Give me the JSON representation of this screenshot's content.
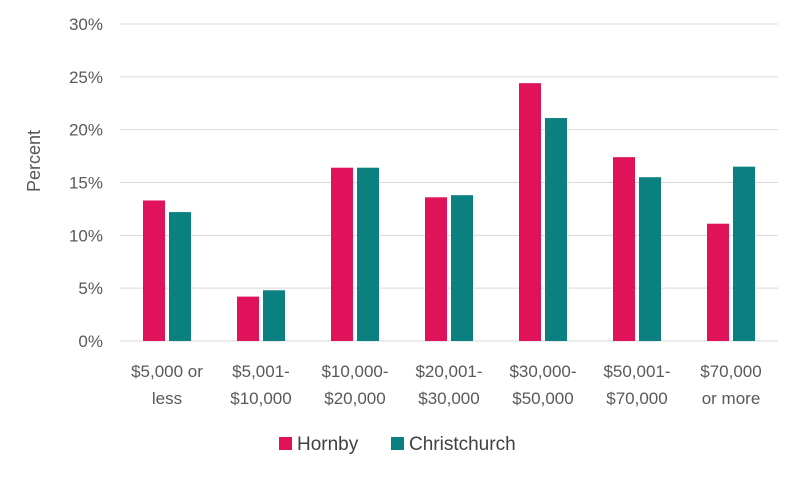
{
  "chart_data": {
    "type": "bar",
    "title": "",
    "xlabel": "",
    "ylabel": "Percent",
    "ylim": [
      0,
      30
    ],
    "yticks": [
      "0%",
      "5%",
      "10%",
      "15%",
      "20%",
      "25%",
      "30%"
    ],
    "grid": true,
    "legend_position": "bottom",
    "categories": [
      [
        "$5,000 or",
        "less"
      ],
      [
        "$5,001-",
        "$10,000"
      ],
      [
        "$10,000-",
        "$20,000"
      ],
      [
        "$20,001-",
        "$30,000"
      ],
      [
        "$30,000-",
        "$50,000"
      ],
      [
        "$50,001-",
        "$70,000"
      ],
      [
        "$70,000",
        "or more"
      ]
    ],
    "series": [
      {
        "name": "Hornby",
        "color": "#e0135a",
        "values": [
          13.3,
          4.2,
          16.4,
          13.6,
          24.4,
          17.4,
          11.1
        ]
      },
      {
        "name": "Christchurch",
        "color": "#0b8080",
        "values": [
          12.2,
          4.8,
          16.4,
          13.8,
          21.1,
          15.5,
          16.5
        ]
      }
    ]
  }
}
